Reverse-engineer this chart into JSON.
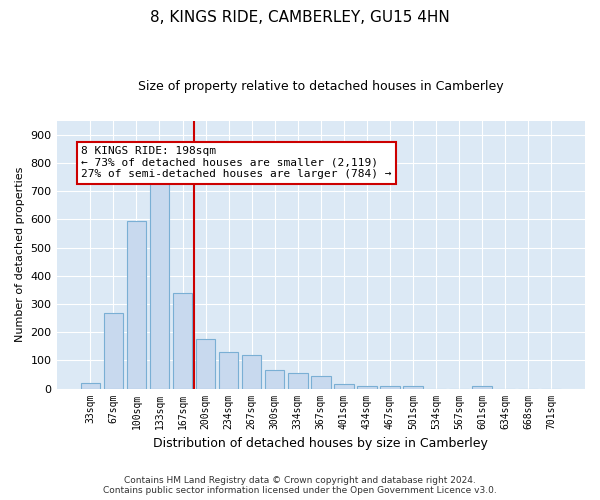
{
  "title": "8, KINGS RIDE, CAMBERLEY, GU15 4HN",
  "subtitle": "Size of property relative to detached houses in Camberley",
  "xlabel": "Distribution of detached houses by size in Camberley",
  "ylabel": "Number of detached properties",
  "bar_labels": [
    "33sqm",
    "67sqm",
    "100sqm",
    "133sqm",
    "167sqm",
    "200sqm",
    "234sqm",
    "267sqm",
    "300sqm",
    "334sqm",
    "367sqm",
    "401sqm",
    "434sqm",
    "467sqm",
    "501sqm",
    "534sqm",
    "567sqm",
    "601sqm",
    "634sqm",
    "668sqm",
    "701sqm"
  ],
  "bar_values": [
    18,
    268,
    595,
    735,
    340,
    175,
    130,
    120,
    65,
    55,
    45,
    15,
    10,
    10,
    10,
    0,
    0,
    10,
    0,
    0,
    0
  ],
  "bar_color": "#c8d9ee",
  "bar_edgecolor": "#7aafd4",
  "bar_linewidth": 0.8,
  "bg_color": "#dce9f5",
  "property_line_x": 4.5,
  "property_line_color": "#cc0000",
  "annotation_text": "8 KINGS RIDE: 198sqm\n← 73% of detached houses are smaller (2,119)\n27% of semi-detached houses are larger (784) →",
  "annotation_box_color": "#ffffff",
  "annotation_box_edgecolor": "#cc0000",
  "ylim": [
    0,
    950
  ],
  "yticks": [
    0,
    100,
    200,
    300,
    400,
    500,
    600,
    700,
    800,
    900
  ],
  "footer1": "Contains HM Land Registry data © Crown copyright and database right 2024.",
  "footer2": "Contains public sector information licensed under the Open Government Licence v3.0."
}
